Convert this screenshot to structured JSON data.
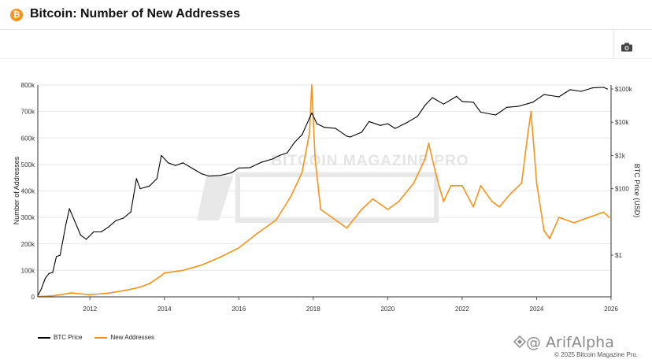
{
  "header": {
    "logo_glyph": "₿",
    "title": "Bitcoin: Number of New Addresses"
  },
  "toolbar": {
    "camera_icon": "camera-icon"
  },
  "watermark": {
    "text": "BITCOIN MAGAZINE PRO",
    "handle": "@ ArifAlpha"
  },
  "credit": "© 2025 Bitcoin Magazine Pro.",
  "colors": {
    "price": "#000000",
    "addresses": "#f7931a",
    "grid": "#e8e8e8"
  },
  "chart_data": {
    "type": "line",
    "title": "",
    "xlabel": "",
    "ylabel": "Number of Addresses",
    "y2label": "BTC Price (USD)",
    "x_ticks": [
      "2012",
      "2014",
      "2016",
      "2018",
      "2020",
      "2022",
      "2024",
      "2026"
    ],
    "y_ticks": [
      "0",
      "100k",
      "200k",
      "300k",
      "400k",
      "500k",
      "600k",
      "700k",
      "800k"
    ],
    "y2_ticks": [
      "$1",
      "$100",
      "$1k",
      "$10k",
      "$100k"
    ],
    "ylim": [
      0,
      800000
    ],
    "y2_scale": "log",
    "xlim": [
      2010.6,
      2026.0
    ],
    "grid": true,
    "legend_position": "bottom-left",
    "series": [
      {
        "name": "BTC Price",
        "axis": "right",
        "x": [
          2010.6,
          2010.7,
          2010.8,
          2010.9,
          2011.0,
          2011.1,
          2011.2,
          2011.35,
          2011.45,
          2011.6,
          2011.75,
          2011.9,
          2012.1,
          2012.3,
          2012.5,
          2012.7,
          2012.9,
          2013.1,
          2013.25,
          2013.35,
          2013.6,
          2013.8,
          2013.92,
          2014.1,
          2014.3,
          2014.5,
          2014.8,
          2015.0,
          2015.2,
          2015.5,
          2015.8,
          2016.0,
          2016.3,
          2016.6,
          2016.9,
          2017.1,
          2017.3,
          2017.5,
          2017.7,
          2017.85,
          2017.96,
          2018.1,
          2018.3,
          2018.6,
          2018.9,
          2019.0,
          2019.3,
          2019.5,
          2019.8,
          2020.0,
          2020.2,
          2020.5,
          2020.8,
          2021.0,
          2021.2,
          2021.5,
          2021.85,
          2022.0,
          2022.3,
          2022.5,
          2022.9,
          2023.2,
          2023.5,
          2023.9,
          2024.2,
          2024.6,
          2024.9,
          2025.2,
          2025.5,
          2025.8,
          2025.9
        ],
        "values": [
          0.06,
          0.1,
          0.2,
          0.28,
          0.3,
          0.9,
          1.0,
          8,
          25,
          10,
          4,
          3,
          5,
          5,
          7,
          11,
          13,
          20,
          200,
          100,
          120,
          200,
          1000,
          600,
          500,
          600,
          380,
          280,
          240,
          250,
          300,
          420,
          430,
          620,
          780,
          1000,
          1200,
          2500,
          4200,
          10000,
          19000,
          9000,
          7000,
          6500,
          3800,
          3600,
          5000,
          10500,
          8000,
          9000,
          6500,
          9500,
          15000,
          32000,
          55000,
          35000,
          60000,
          42000,
          40000,
          20000,
          16500,
          28000,
          30000,
          40000,
          68000,
          58000,
          95000,
          85000,
          108000,
          112000,
          100000
        ]
      },
      {
        "name": "New Addresses",
        "axis": "left",
        "x": [
          2010.6,
          2011.0,
          2011.3,
          2011.5,
          2012.0,
          2012.5,
          2013.0,
          2013.3,
          2013.6,
          2013.92,
          2014.0,
          2014.5,
          2015.0,
          2015.5,
          2016.0,
          2016.5,
          2017.0,
          2017.4,
          2017.7,
          2017.9,
          2017.96,
          2018.05,
          2018.2,
          2018.5,
          2018.9,
          2019.3,
          2019.6,
          2020.0,
          2020.3,
          2020.7,
          2021.0,
          2021.1,
          2021.3,
          2021.5,
          2021.7,
          2022.0,
          2022.3,
          2022.5,
          2022.8,
          2023.0,
          2023.3,
          2023.6,
          2023.75,
          2023.85,
          2024.0,
          2024.2,
          2024.35,
          2024.6,
          2025.0,
          2025.4,
          2025.8,
          2025.95
        ],
        "values": [
          1000,
          4000,
          10000,
          15000,
          8000,
          14000,
          26000,
          35000,
          50000,
          80000,
          90000,
          100000,
          120000,
          150000,
          185000,
          240000,
          290000,
          380000,
          470000,
          620000,
          800000,
          520000,
          330000,
          300000,
          260000,
          330000,
          370000,
          330000,
          360000,
          430000,
          520000,
          580000,
          460000,
          360000,
          420000,
          420000,
          340000,
          420000,
          360000,
          340000,
          390000,
          430000,
          600000,
          700000,
          430000,
          250000,
          220000,
          300000,
          280000,
          300000,
          320000,
          300000
        ]
      }
    ]
  }
}
